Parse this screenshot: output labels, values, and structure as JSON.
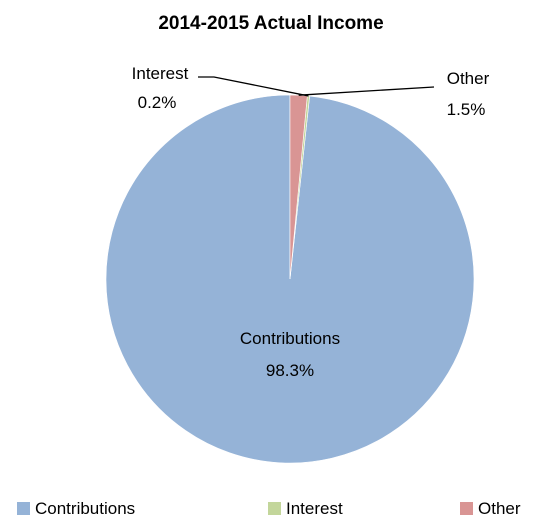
{
  "chart_data": {
    "type": "pie",
    "title": "2014-2015 Actual Income",
    "slices": [
      {
        "name": "Contributions",
        "value": 98.3,
        "label": "98.3%",
        "color": "#95b3d7"
      },
      {
        "name": "Interest",
        "value": 0.2,
        "label": "0.2%",
        "color": "#c3d69b"
      },
      {
        "name": "Other",
        "value": 1.5,
        "label": "1.5%",
        "color": "#d99594"
      }
    ],
    "legend": {
      "position": "bottom",
      "items": [
        "Contributions",
        "Interest",
        "Other"
      ]
    },
    "start_angle": "12 o'clock",
    "direction": "counter-clockwise"
  }
}
